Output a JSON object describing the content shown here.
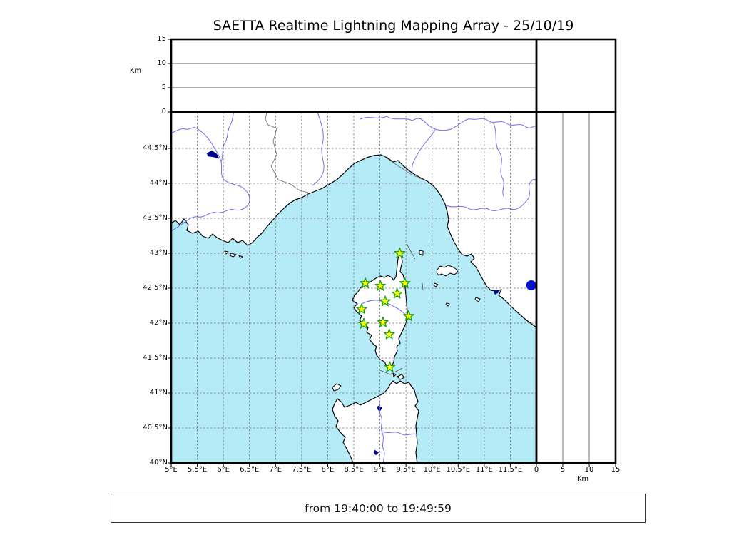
{
  "title": "SAETTA Realtime Lightning Mapping Array - 25/10/19",
  "caption": {
    "text": "from 19:40:00 to 19:49:59"
  },
  "axes": {
    "longitude": {
      "tick_labels": [
        "5°E",
        "5.5°E",
        "6°E",
        "6.5°E",
        "7°E",
        "7.5°E",
        "8°E",
        "8.5°E",
        "9°E",
        "9.5°E",
        "10°E",
        "10.5°E",
        "11°E",
        "11.5°E"
      ],
      "tick_values": [
        5,
        5.5,
        6,
        6.5,
        7,
        7.5,
        8,
        8.5,
        9,
        9.5,
        10,
        10.5,
        11,
        11.5
      ],
      "range": [
        5,
        12
      ]
    },
    "latitude": {
      "tick_labels": [
        "44.5°N",
        "44°N",
        "43.5°N",
        "43°N",
        "42.5°N",
        "42°N",
        "41.5°N",
        "41°N",
        "40.5°N",
        "40°N"
      ],
      "tick_values": [
        44.5,
        44,
        43.5,
        43,
        42.5,
        42,
        41.5,
        41,
        40.5,
        40
      ],
      "range": [
        40,
        45.02
      ]
    },
    "alt_top": {
      "unit": "Km",
      "tick_labels": [
        "0",
        "5",
        "10",
        "15"
      ],
      "tick_values": [
        0,
        5,
        10,
        15
      ],
      "max": 15
    },
    "alt_right": {
      "unit": "Km",
      "tick_labels": [
        "0",
        "5",
        "10",
        "15"
      ],
      "tick_values": [
        0,
        5,
        10,
        15
      ],
      "max": 15
    }
  },
  "map": {
    "stations": [
      {
        "lon": 9.38,
        "lat": 43.0
      },
      {
        "lon": 8.72,
        "lat": 42.57
      },
      {
        "lon": 9.01,
        "lat": 42.53
      },
      {
        "lon": 9.48,
        "lat": 42.57
      },
      {
        "lon": 9.33,
        "lat": 42.42
      },
      {
        "lon": 9.1,
        "lat": 42.31
      },
      {
        "lon": 8.65,
        "lat": 42.2
      },
      {
        "lon": 9.55,
        "lat": 42.1
      },
      {
        "lon": 9.06,
        "lat": 42.01
      },
      {
        "lon": 8.69,
        "lat": 41.99
      },
      {
        "lon": 9.18,
        "lat": 41.84
      },
      {
        "lon": 9.19,
        "lat": 41.37
      }
    ],
    "event_dot": {
      "lon": 11.9,
      "lat": 42.54
    }
  },
  "colors": {
    "sea": "#b5eaf7",
    "land": "#ffffff",
    "coast": "#000000",
    "river": "#6f6fe8",
    "border": "#777777",
    "grid": "#6e6e6e",
    "lake": "#00008b",
    "station_fill": "#ffff00",
    "station_edge": "#17a017",
    "event_dot": "#0013cc",
    "panel_gridline": "#666666",
    "frame": "#000000"
  }
}
